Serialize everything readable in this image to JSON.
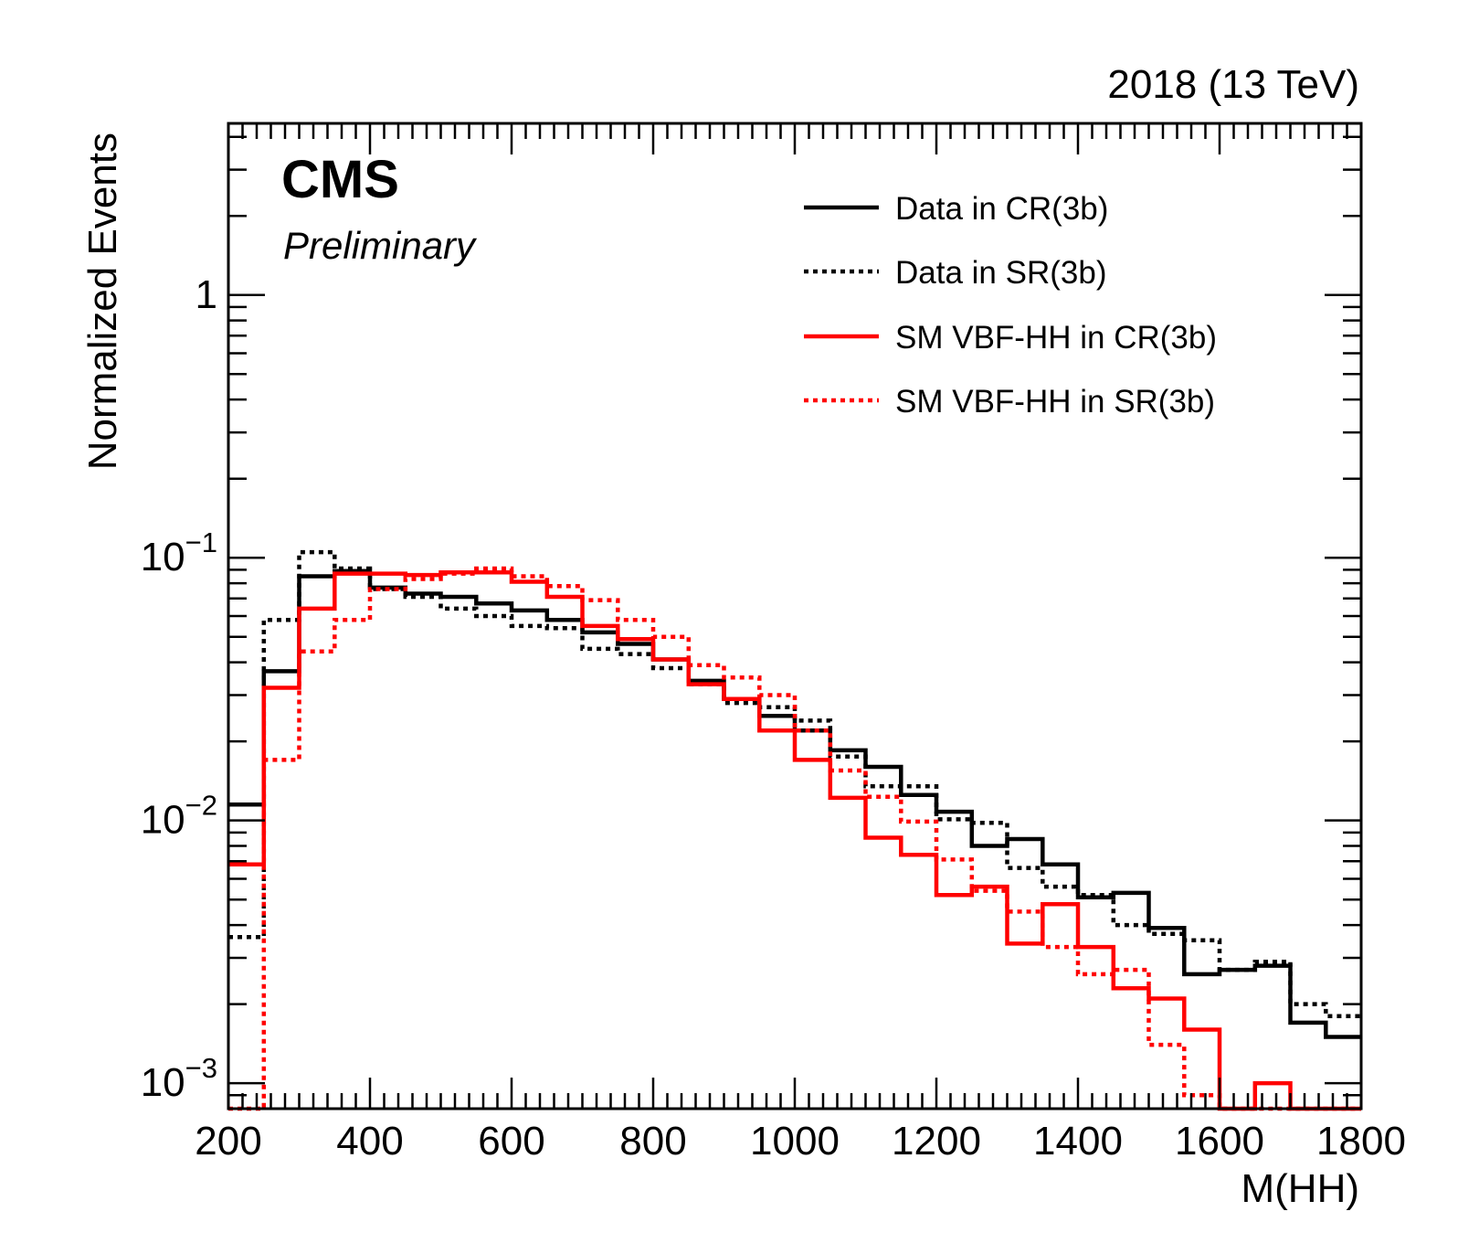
{
  "chart_data": {
    "type": "step",
    "xlabel": "M(HH)",
    "ylabel": "Normalized Events",
    "yscale": "log",
    "xlim": [
      200,
      1800
    ],
    "ylim": [
      0.0008,
      4.5
    ],
    "x_ticks": [
      200,
      400,
      600,
      800,
      1000,
      1200,
      1400,
      1600,
      1800
    ],
    "y_ticks": [
      {
        "value": 0.001,
        "label": "10",
        "exp": "−3"
      },
      {
        "value": 0.01,
        "label": "10",
        "exp": "−2"
      },
      {
        "value": 0.1,
        "label": "10",
        "exp": "−1"
      },
      {
        "value": 1,
        "label": "1",
        "exp": ""
      }
    ],
    "bin_edges": [
      200,
      250,
      300,
      350,
      400,
      450,
      500,
      550,
      600,
      650,
      700,
      750,
      800,
      850,
      900,
      950,
      1000,
      1050,
      1100,
      1150,
      1200,
      1250,
      1300,
      1350,
      1400,
      1450,
      1500,
      1550,
      1600,
      1650,
      1700,
      1750,
      1800
    ],
    "series": [
      {
        "name": "Data in CR(3b)",
        "color": "#000000",
        "style": "solid",
        "values": [
          0.0115,
          0.037,
          0.085,
          0.089,
          0.077,
          0.073,
          0.071,
          0.067,
          0.063,
          0.058,
          0.052,
          0.047,
          0.041,
          0.034,
          0.029,
          0.025,
          0.022,
          0.0185,
          0.016,
          0.0125,
          0.0108,
          0.008,
          0.0085,
          0.0068,
          0.0051,
          0.0053,
          0.0039,
          0.0026,
          0.0027,
          0.0028,
          0.0017,
          0.0015
        ]
      },
      {
        "name": "Data in SR(3b)",
        "color": "#000000",
        "style": "dotted",
        "values": [
          0.0036,
          0.058,
          0.105,
          0.091,
          0.076,
          0.071,
          0.064,
          0.06,
          0.055,
          0.054,
          0.045,
          0.043,
          0.038,
          0.033,
          0.028,
          0.027,
          0.024,
          0.0175,
          0.0135,
          0.0135,
          0.0101,
          0.0098,
          0.0066,
          0.0056,
          0.0052,
          0.004,
          0.0037,
          0.0035,
          0.0027,
          0.0029,
          0.002,
          0.0018
        ]
      },
      {
        "name": "SM VBF-HH in CR(3b)",
        "color": "#ff0000",
        "style": "solid",
        "values": [
          0.0068,
          0.032,
          0.064,
          0.087,
          0.087,
          0.086,
          0.088,
          0.088,
          0.081,
          0.071,
          0.055,
          0.049,
          0.041,
          0.033,
          0.029,
          0.022,
          0.017,
          0.0122,
          0.0086,
          0.0074,
          0.0052,
          0.0056,
          0.0034,
          0.0048,
          0.0033,
          0.0023,
          0.0021,
          0.0016,
          0.0008,
          0.001,
          0.0008,
          0.0008
        ]
      },
      {
        "name": "SM VBF-HH in SR(3b)",
        "color": "#ff0000",
        "style": "dotted",
        "values": [
          0.0008,
          0.017,
          0.044,
          0.058,
          0.076,
          0.083,
          0.087,
          0.091,
          0.085,
          0.078,
          0.069,
          0.058,
          0.05,
          0.039,
          0.035,
          0.03,
          0.022,
          0.0155,
          0.0123,
          0.0099,
          0.0071,
          0.0054,
          0.0045,
          0.0033,
          0.0026,
          0.0027,
          0.0014,
          0.0009,
          0.0008,
          0.0008,
          0.0008,
          0.0008
        ]
      }
    ],
    "legend_placement": "top-right",
    "annotations": {
      "experiment": "CMS",
      "status": "Preliminary",
      "lumi": "2018 (13 TeV)"
    }
  }
}
